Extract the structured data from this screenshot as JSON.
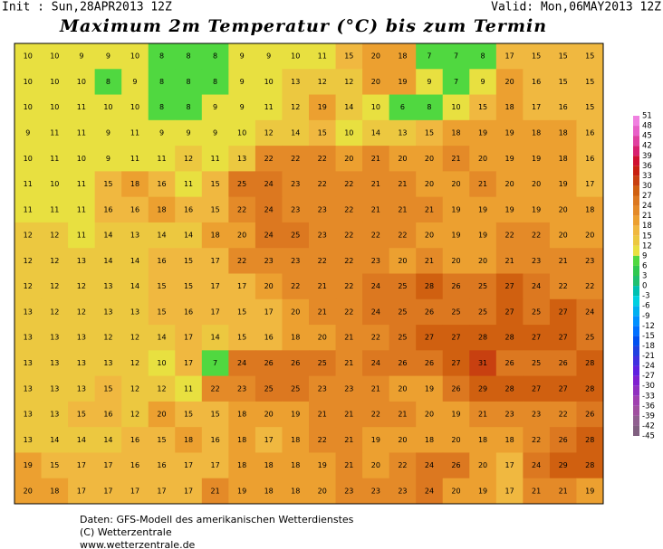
{
  "header": {
    "init": "Init : Sun,28APR2013 12Z",
    "valid": "Valid: Mon,06MAY2013 12Z",
    "title": "Maximum 2m Temperatur (°C) bis zum Termin"
  },
  "footer": {
    "lines": [
      "Daten: GFS-Modell des amerikanischen Wetterdienstes",
      "(C) Wetterzentrale",
      "www.wetterzentrale.de"
    ]
  },
  "colorbar": {
    "levels": [
      51,
      48,
      45,
      42,
      39,
      36,
      33,
      30,
      27,
      24,
      21,
      18,
      15,
      12,
      9,
      6,
      3,
      0,
      -3,
      -6,
      -9,
      -12,
      -15,
      -18,
      -21,
      -24,
      -27,
      -30,
      -33,
      -36,
      -39,
      -42,
      -45
    ],
    "colors": [
      "#f080e0",
      "#e860c8",
      "#e040a0",
      "#d82070",
      "#d01030",
      "#c82010",
      "#c84010",
      "#d06010",
      "#dc7820",
      "#e48a28",
      "#eca030",
      "#f0b840",
      "#ecc840",
      "#e8e040",
      "#50d840",
      "#30c850",
      "#20c070",
      "#00c0b0",
      "#00d0e0",
      "#00b0f0",
      "#0090ff",
      "#0070ff",
      "#0050f0",
      "#2040e0",
      "#4030e0",
      "#6020e0",
      "#8020d0",
      "#9030c0",
      "#a040b0",
      "#a050a0",
      "#906090",
      "#806080"
    ]
  },
  "map": {
    "rows": [
      [
        10,
        10,
        9,
        9,
        10,
        8,
        8,
        8,
        9,
        9,
        10,
        11,
        15,
        20,
        18,
        7,
        7,
        8,
        17,
        15,
        15,
        15
      ],
      [
        10,
        10,
        10,
        8,
        9,
        8,
        8,
        8,
        9,
        10,
        13,
        12,
        12,
        20,
        19,
        9,
        7,
        9,
        20,
        16,
        15,
        15
      ],
      [
        10,
        10,
        11,
        10,
        10,
        8,
        8,
        9,
        9,
        11,
        12,
        19,
        14,
        10,
        6,
        8,
        10,
        15,
        18,
        17,
        16,
        15
      ],
      [
        9,
        11,
        11,
        9,
        11,
        9,
        9,
        9,
        10,
        12,
        14,
        15,
        10,
        14,
        13,
        15,
        18,
        19,
        19,
        18,
        18,
        16
      ],
      [
        10,
        11,
        10,
        9,
        11,
        11,
        12,
        11,
        13,
        22,
        22,
        22,
        20,
        21,
        20,
        20,
        21,
        20,
        19,
        19,
        18,
        16
      ],
      [
        11,
        10,
        11,
        15,
        18,
        16,
        11,
        15,
        25,
        24,
        23,
        22,
        22,
        21,
        21,
        20,
        20,
        21,
        20,
        20,
        19,
        17
      ],
      [
        11,
        11,
        11,
        16,
        16,
        18,
        16,
        15,
        22,
        24,
        23,
        23,
        22,
        21,
        21,
        21,
        19,
        19,
        19,
        19,
        20,
        18
      ],
      [
        12,
        12,
        11,
        14,
        13,
        14,
        14,
        18,
        20,
        24,
        25,
        23,
        22,
        22,
        22,
        20,
        19,
        19,
        22,
        22,
        20,
        20
      ],
      [
        12,
        12,
        13,
        14,
        14,
        16,
        15,
        17,
        22,
        23,
        23,
        22,
        22,
        23,
        20,
        21,
        20,
        20,
        21,
        23,
        21,
        23
      ],
      [
        12,
        12,
        12,
        13,
        14,
        15,
        15,
        17,
        17,
        20,
        22,
        21,
        22,
        24,
        25,
        28,
        26,
        25,
        27,
        24,
        22,
        22
      ],
      [
        13,
        12,
        12,
        13,
        13,
        15,
        16,
        17,
        15,
        17,
        20,
        21,
        22,
        24,
        25,
        26,
        25,
        25,
        27,
        25,
        27,
        24
      ],
      [
        13,
        13,
        13,
        12,
        12,
        14,
        17,
        14,
        15,
        16,
        18,
        20,
        21,
        22,
        25,
        27,
        27,
        28,
        28,
        27,
        27,
        25
      ],
      [
        13,
        13,
        13,
        13,
        12,
        10,
        17,
        7,
        24,
        26,
        26,
        25,
        21,
        24,
        26,
        26,
        27,
        31,
        26,
        25,
        26,
        28
      ],
      [
        13,
        13,
        13,
        15,
        12,
        12,
        11,
        22,
        23,
        25,
        25,
        23,
        23,
        21,
        20,
        19,
        26,
        29,
        28,
        27,
        27,
        28
      ],
      [
        13,
        13,
        15,
        16,
        12,
        20,
        15,
        15,
        18,
        20,
        19,
        21,
        21,
        22,
        21,
        20,
        19,
        21,
        23,
        23,
        22,
        26
      ],
      [
        13,
        14,
        14,
        14,
        16,
        15,
        18,
        16,
        18,
        17,
        18,
        22,
        21,
        19,
        20,
        18,
        20,
        18,
        18,
        22,
        26,
        28
      ],
      [
        19,
        15,
        17,
        17,
        16,
        16,
        17,
        17,
        18,
        18,
        18,
        19,
        21,
        20,
        22,
        24,
        26,
        20,
        17,
        24,
        29,
        28
      ],
      [
        20,
        18,
        17,
        17,
        17,
        17,
        17,
        21,
        19,
        18,
        18,
        20,
        23,
        23,
        23,
        24,
        20,
        19,
        17,
        21,
        21,
        19
      ]
    ]
  }
}
